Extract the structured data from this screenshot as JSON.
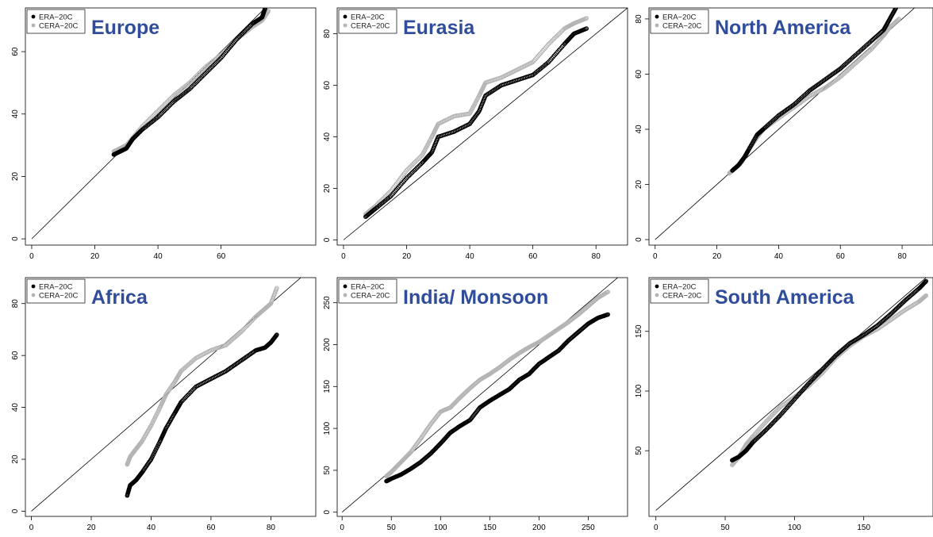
{
  "figure": {
    "legend_labels": [
      "ERA−20C",
      "CERA−20C"
    ],
    "colors": {
      "era": "#000000",
      "cera": "#b4b4b4",
      "title": "#2f4d9a",
      "reference_line": "#000000"
    }
  },
  "chart_data": [
    {
      "type": "scatter",
      "title": "Europe",
      "xlim": [
        -2,
        90
      ],
      "ylim": [
        -2,
        74
      ],
      "xticks": [
        0,
        20,
        40,
        60
      ],
      "yticks": [
        0,
        20,
        40,
        60
      ],
      "reference_line": "y = x",
      "series": [
        {
          "name": "ERA−20C",
          "color": "#000000",
          "points": [
            [
              26,
              27
            ],
            [
              28,
              28
            ],
            [
              30,
              29
            ],
            [
              32,
              32
            ],
            [
              35,
              35
            ],
            [
              40,
              39
            ],
            [
              45,
              44
            ],
            [
              50,
              48
            ],
            [
              55,
              53
            ],
            [
              60,
              58
            ],
            [
              65,
              64
            ],
            [
              70,
              69
            ],
            [
              73,
              71
            ],
            [
              74,
              74
            ]
          ]
        },
        {
          "name": "CERA−20C",
          "color": "#b4b4b4",
          "points": [
            [
              26,
              28
            ],
            [
              28,
              29
            ],
            [
              30,
              30
            ],
            [
              35,
              36
            ],
            [
              40,
              41
            ],
            [
              45,
              46
            ],
            [
              50,
              50
            ],
            [
              55,
              55
            ],
            [
              60,
              59
            ],
            [
              65,
              64
            ],
            [
              70,
              68
            ],
            [
              73,
              70
            ],
            [
              75,
              73
            ]
          ]
        }
      ]
    },
    {
      "type": "scatter",
      "title": "Eurasia",
      "xlim": [
        -2,
        90
      ],
      "ylim": [
        -2,
        90
      ],
      "xticks": [
        0,
        20,
        40,
        60,
        80
      ],
      "yticks": [
        0,
        20,
        40,
        60,
        80
      ],
      "reference_line": "y = x",
      "series": [
        {
          "name": "ERA−20C",
          "color": "#000000",
          "points": [
            [
              7,
              9
            ],
            [
              10,
              12
            ],
            [
              15,
              17
            ],
            [
              20,
              24
            ],
            [
              25,
              30
            ],
            [
              28,
              34
            ],
            [
              30,
              40
            ],
            [
              35,
              42
            ],
            [
              40,
              45
            ],
            [
              43,
              50
            ],
            [
              45,
              56
            ],
            [
              50,
              60
            ],
            [
              55,
              62
            ],
            [
              60,
              64
            ],
            [
              65,
              69
            ],
            [
              70,
              76
            ],
            [
              73,
              80
            ],
            [
              77,
              82
            ]
          ]
        },
        {
          "name": "CERA−20C",
          "color": "#b4b4b4",
          "points": [
            [
              7,
              10
            ],
            [
              10,
              13
            ],
            [
              15,
              19
            ],
            [
              20,
              27
            ],
            [
              25,
              33
            ],
            [
              28,
              40
            ],
            [
              30,
              45
            ],
            [
              35,
              48
            ],
            [
              40,
              49
            ],
            [
              43,
              56
            ],
            [
              45,
              61
            ],
            [
              50,
              63
            ],
            [
              55,
              66
            ],
            [
              60,
              69
            ],
            [
              65,
              76
            ],
            [
              70,
              82
            ],
            [
              73,
              84
            ],
            [
              77,
              86
            ]
          ]
        }
      ]
    },
    {
      "type": "scatter",
      "title": "North America",
      "xlim": [
        -2,
        90
      ],
      "ylim": [
        -2,
        84
      ],
      "xticks": [
        0,
        20,
        40,
        60,
        80
      ],
      "yticks": [
        0,
        20,
        40,
        60,
        80
      ],
      "reference_line": "y = x",
      "series": [
        {
          "name": "ERA−20C",
          "color": "#000000",
          "points": [
            [
              25,
              25
            ],
            [
              27,
              27
            ],
            [
              29,
              30
            ],
            [
              30,
              32
            ],
            [
              33,
              38
            ],
            [
              35,
              40
            ],
            [
              40,
              45
            ],
            [
              45,
              49
            ],
            [
              50,
              54
            ],
            [
              55,
              58
            ],
            [
              60,
              62
            ],
            [
              65,
              67
            ],
            [
              70,
              72
            ],
            [
              74,
              76
            ],
            [
              76,
              80
            ],
            [
              78,
              84
            ]
          ]
        },
        {
          "name": "CERA−20C",
          "color": "#b4b4b4",
          "points": [
            [
              24,
              24
            ],
            [
              26,
              26
            ],
            [
              28,
              28
            ],
            [
              30,
              32
            ],
            [
              33,
              37
            ],
            [
              35,
              40
            ],
            [
              40,
              44
            ],
            [
              45,
              48
            ],
            [
              50,
              52
            ],
            [
              55,
              55
            ],
            [
              60,
              59
            ],
            [
              65,
              64
            ],
            [
              70,
              69
            ],
            [
              74,
              74
            ],
            [
              76,
              77
            ],
            [
              79,
              80
            ]
          ]
        }
      ]
    },
    {
      "type": "scatter",
      "title": "Africa",
      "xlim": [
        -2,
        95
      ],
      "ylim": [
        -2,
        90
      ],
      "xticks": [
        0,
        20,
        40,
        60,
        80
      ],
      "yticks": [
        0,
        20,
        40,
        60,
        80
      ],
      "reference_line": "y = x",
      "series": [
        {
          "name": "ERA−20C",
          "color": "#000000",
          "points": [
            [
              32,
              6
            ],
            [
              33,
              10
            ],
            [
              35,
              12
            ],
            [
              37,
              15
            ],
            [
              40,
              20
            ],
            [
              43,
              27
            ],
            [
              45,
              32
            ],
            [
              48,
              38
            ],
            [
              50,
              42
            ],
            [
              55,
              48
            ],
            [
              60,
              51
            ],
            [
              65,
              54
            ],
            [
              70,
              58
            ],
            [
              75,
              62
            ],
            [
              78,
              63
            ],
            [
              80,
              65
            ],
            [
              82,
              68
            ]
          ]
        },
        {
          "name": "CERA−20C",
          "color": "#b4b4b4",
          "points": [
            [
              32,
              18
            ],
            [
              33,
              21
            ],
            [
              35,
              24
            ],
            [
              37,
              27
            ],
            [
              40,
              33
            ],
            [
              43,
              40
            ],
            [
              45,
              45
            ],
            [
              48,
              50
            ],
            [
              50,
              54
            ],
            [
              55,
              59
            ],
            [
              60,
              62
            ],
            [
              65,
              64
            ],
            [
              70,
              69
            ],
            [
              75,
              75
            ],
            [
              78,
              78
            ],
            [
              80,
              80
            ],
            [
              82,
              86
            ]
          ]
        }
      ]
    },
    {
      "type": "scatter",
      "title": "India/ Monsoon",
      "xlim": [
        -5,
        290
      ],
      "ylim": [
        -5,
        280
      ],
      "xticks": [
        0,
        50,
        100,
        150,
        200,
        250
      ],
      "yticks": [
        0,
        50,
        100,
        150,
        200,
        250
      ],
      "reference_line": "y = x",
      "series": [
        {
          "name": "ERA−20C",
          "color": "#000000",
          "points": [
            [
              45,
              37
            ],
            [
              50,
              40
            ],
            [
              60,
              45
            ],
            [
              70,
              52
            ],
            [
              80,
              60
            ],
            [
              90,
              70
            ],
            [
              100,
              82
            ],
            [
              110,
              95
            ],
            [
              120,
              103
            ],
            [
              130,
              110
            ],
            [
              140,
              125
            ],
            [
              150,
              133
            ],
            [
              160,
              140
            ],
            [
              170,
              147
            ],
            [
              180,
              158
            ],
            [
              190,
              165
            ],
            [
              200,
              177
            ],
            [
              210,
              185
            ],
            [
              220,
              193
            ],
            [
              230,
              205
            ],
            [
              240,
              215
            ],
            [
              250,
              225
            ],
            [
              260,
              232
            ],
            [
              270,
              236
            ]
          ]
        },
        {
          "name": "CERA−20C",
          "color": "#b4b4b4",
          "points": [
            [
              45,
              43
            ],
            [
              50,
              48
            ],
            [
              60,
              60
            ],
            [
              70,
              72
            ],
            [
              80,
              88
            ],
            [
              90,
              105
            ],
            [
              100,
              120
            ],
            [
              110,
              125
            ],
            [
              120,
              137
            ],
            [
              130,
              148
            ],
            [
              140,
              158
            ],
            [
              150,
              165
            ],
            [
              160,
              173
            ],
            [
              170,
              182
            ],
            [
              180,
              190
            ],
            [
              190,
              197
            ],
            [
              200,
              203
            ],
            [
              210,
              211
            ],
            [
              220,
              219
            ],
            [
              230,
              227
            ],
            [
              240,
              236
            ],
            [
              250,
              246
            ],
            [
              260,
              256
            ],
            [
              270,
              263
            ]
          ]
        }
      ]
    },
    {
      "type": "scatter",
      "title": "South America",
      "xlim": [
        -5,
        200
      ],
      "ylim": [
        -5,
        195
      ],
      "xticks": [
        0,
        50,
        100,
        150
      ],
      "yticks": [
        50,
        100,
        150
      ],
      "reference_line": "y = x",
      "series": [
        {
          "name": "ERA−20C",
          "color": "#000000",
          "points": [
            [
              55,
              42
            ],
            [
              60,
              45
            ],
            [
              65,
              50
            ],
            [
              70,
              57
            ],
            [
              80,
              68
            ],
            [
              90,
              80
            ],
            [
              100,
              93
            ],
            [
              110,
              106
            ],
            [
              120,
              118
            ],
            [
              130,
              130
            ],
            [
              140,
              140
            ],
            [
              150,
              147
            ],
            [
              160,
              155
            ],
            [
              170,
              165
            ],
            [
              180,
              176
            ],
            [
              190,
              186
            ],
            [
              195,
              192
            ]
          ]
        },
        {
          "name": "CERA−20C",
          "color": "#b4b4b4",
          "points": [
            [
              55,
              38
            ],
            [
              60,
              45
            ],
            [
              65,
              55
            ],
            [
              70,
              62
            ],
            [
              80,
              75
            ],
            [
              90,
              87
            ],
            [
              100,
              95
            ],
            [
              110,
              104
            ],
            [
              120,
              115
            ],
            [
              130,
              128
            ],
            [
              140,
              138
            ],
            [
              150,
              146
            ],
            [
              160,
              152
            ],
            [
              170,
              160
            ],
            [
              180,
              168
            ],
            [
              190,
              175
            ],
            [
              195,
              180
            ]
          ]
        }
      ]
    }
  ]
}
